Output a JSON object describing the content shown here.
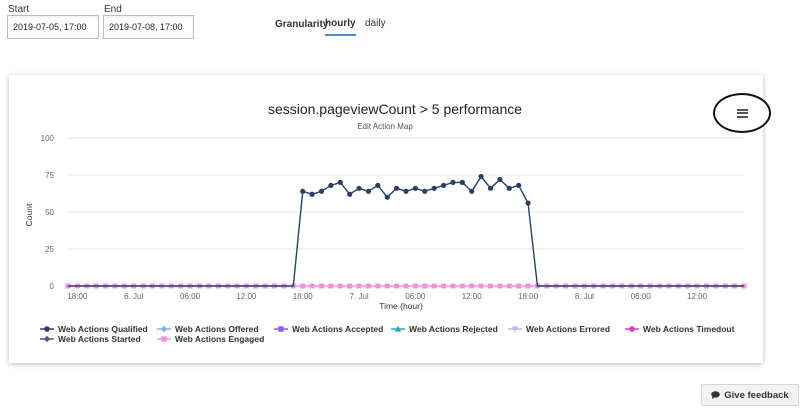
{
  "filters": {
    "start_label": "Start",
    "start_value": "2019-07-05, 17:00",
    "end_label": "End",
    "end_value": "2019-07-08, 17:00",
    "granularity_label": "Granularity",
    "granularity_options": [
      "hourly",
      "daily"
    ],
    "granularity_selected": "hourly"
  },
  "menu": {
    "icon": "hamburger-menu-icon"
  },
  "feedback": {
    "icon": "speech-bubble-icon",
    "label": "Give feedback"
  },
  "colors": {
    "qualified": "#2b3f6b",
    "engaged": "#f78fd8",
    "accent_tab": "#4a8fd6",
    "grid": "#e6e6e6",
    "axis_text": "#666666"
  },
  "chart_data": {
    "type": "line",
    "title": "session.pageviewCount > 5 performance",
    "subtitle": "Edit Action Map",
    "xlabel": "Time (hour)",
    "ylabel": "Count",
    "ylim": [
      0,
      100
    ],
    "y_ticks": [
      0,
      25,
      50,
      75,
      100
    ],
    "x_range": [
      "2019-07-05 17:00",
      "2019-07-08 17:00"
    ],
    "x_ticks": [
      {
        "label": "18:00",
        "at": "2019-07-05 18:00"
      },
      {
        "label": "6. Jul",
        "at": "2019-07-06 00:00"
      },
      {
        "label": "06:00",
        "at": "2019-07-06 06:00"
      },
      {
        "label": "12:00",
        "at": "2019-07-06 12:00"
      },
      {
        "label": "18:00",
        "at": "2019-07-06 18:00"
      },
      {
        "label": "7. Jul",
        "at": "2019-07-07 00:00"
      },
      {
        "label": "06:00",
        "at": "2019-07-07 06:00"
      },
      {
        "label": "12:00",
        "at": "2019-07-07 12:00"
      },
      {
        "label": "18:00",
        "at": "2019-07-07 18:00"
      },
      {
        "label": "8. Jul",
        "at": "2019-07-08 00:00"
      },
      {
        "label": "06:00",
        "at": "2019-07-08 06:00"
      },
      {
        "label": "12:00",
        "at": "2019-07-08 12:00"
      }
    ],
    "series": [
      {
        "name": "Web Actions Qualified",
        "color": "#2b3f6b",
        "marker": "circle",
        "data": [
          [
            "2019-07-05 17:00",
            0
          ],
          [
            "2019-07-05 18:00",
            0
          ],
          [
            "2019-07-05 19:00",
            0
          ],
          [
            "2019-07-05 20:00",
            0
          ],
          [
            "2019-07-05 21:00",
            0
          ],
          [
            "2019-07-05 22:00",
            0
          ],
          [
            "2019-07-05 23:00",
            0
          ],
          [
            "2019-07-06 00:00",
            0
          ],
          [
            "2019-07-06 01:00",
            0
          ],
          [
            "2019-07-06 02:00",
            0
          ],
          [
            "2019-07-06 03:00",
            0
          ],
          [
            "2019-07-06 04:00",
            0
          ],
          [
            "2019-07-06 05:00",
            0
          ],
          [
            "2019-07-06 06:00",
            0
          ],
          [
            "2019-07-06 07:00",
            0
          ],
          [
            "2019-07-06 08:00",
            0
          ],
          [
            "2019-07-06 09:00",
            0
          ],
          [
            "2019-07-06 10:00",
            0
          ],
          [
            "2019-07-06 11:00",
            0
          ],
          [
            "2019-07-06 12:00",
            0
          ],
          [
            "2019-07-06 13:00",
            0
          ],
          [
            "2019-07-06 14:00",
            0
          ],
          [
            "2019-07-06 15:00",
            0
          ],
          [
            "2019-07-06 16:00",
            0
          ],
          [
            "2019-07-06 17:00",
            0
          ],
          [
            "2019-07-06 18:00",
            64
          ],
          [
            "2019-07-06 19:00",
            62
          ],
          [
            "2019-07-06 20:00",
            64
          ],
          [
            "2019-07-06 21:00",
            68
          ],
          [
            "2019-07-06 22:00",
            70
          ],
          [
            "2019-07-06 23:00",
            62
          ],
          [
            "2019-07-07 00:00",
            66
          ],
          [
            "2019-07-07 01:00",
            64
          ],
          [
            "2019-07-07 02:00",
            68
          ],
          [
            "2019-07-07 03:00",
            60
          ],
          [
            "2019-07-07 04:00",
            66
          ],
          [
            "2019-07-07 05:00",
            64
          ],
          [
            "2019-07-07 06:00",
            66
          ],
          [
            "2019-07-07 07:00",
            64
          ],
          [
            "2019-07-07 08:00",
            66
          ],
          [
            "2019-07-07 09:00",
            68
          ],
          [
            "2019-07-07 10:00",
            70
          ],
          [
            "2019-07-07 11:00",
            70
          ],
          [
            "2019-07-07 12:00",
            64
          ],
          [
            "2019-07-07 13:00",
            74
          ],
          [
            "2019-07-07 14:00",
            66
          ],
          [
            "2019-07-07 15:00",
            72
          ],
          [
            "2019-07-07 16:00",
            66
          ],
          [
            "2019-07-07 17:00",
            68
          ],
          [
            "2019-07-07 18:00",
            56
          ],
          [
            "2019-07-07 19:00",
            0
          ],
          [
            "2019-07-07 20:00",
            0
          ],
          [
            "2019-07-07 21:00",
            0
          ],
          [
            "2019-07-07 22:00",
            0
          ],
          [
            "2019-07-07 23:00",
            0
          ],
          [
            "2019-07-08 00:00",
            0
          ],
          [
            "2019-07-08 01:00",
            0
          ],
          [
            "2019-07-08 02:00",
            0
          ],
          [
            "2019-07-08 03:00",
            0
          ],
          [
            "2019-07-08 04:00",
            0
          ],
          [
            "2019-07-08 05:00",
            0
          ],
          [
            "2019-07-08 06:00",
            0
          ],
          [
            "2019-07-08 07:00",
            0
          ],
          [
            "2019-07-08 08:00",
            0
          ],
          [
            "2019-07-08 09:00",
            0
          ],
          [
            "2019-07-08 10:00",
            0
          ],
          [
            "2019-07-08 11:00",
            0
          ],
          [
            "2019-07-08 12:00",
            0
          ],
          [
            "2019-07-08 13:00",
            0
          ],
          [
            "2019-07-08 14:00",
            0
          ],
          [
            "2019-07-08 15:00",
            0
          ],
          [
            "2019-07-08 16:00",
            0
          ],
          [
            "2019-07-08 17:00",
            0
          ]
        ]
      },
      {
        "name": "Web Actions Offered",
        "color": "#7cb5ec",
        "marker": "diamond",
        "value_all": 0
      },
      {
        "name": "Web Actions Accepted",
        "color": "#8e5fd6",
        "marker": "square",
        "value_all": 0
      },
      {
        "name": "Web Actions Rejected",
        "color": "#2aa3bf",
        "marker": "triangle",
        "value_all": 0
      },
      {
        "name": "Web Actions Errored",
        "color": "#b9b9f0",
        "marker": "triangle-down",
        "value_all": 0
      },
      {
        "name": "Web Actions Timedout",
        "color": "#d33fc0",
        "marker": "circle",
        "value_all": 0
      },
      {
        "name": "Web Actions Started",
        "color": "#555a7a",
        "marker": "diamond",
        "value_all": 0
      },
      {
        "name": "Web Actions Engaged",
        "color": "#f78fd8",
        "marker": "square",
        "value_all": 0
      }
    ],
    "legend_position": "bottom",
    "grid": true
  }
}
